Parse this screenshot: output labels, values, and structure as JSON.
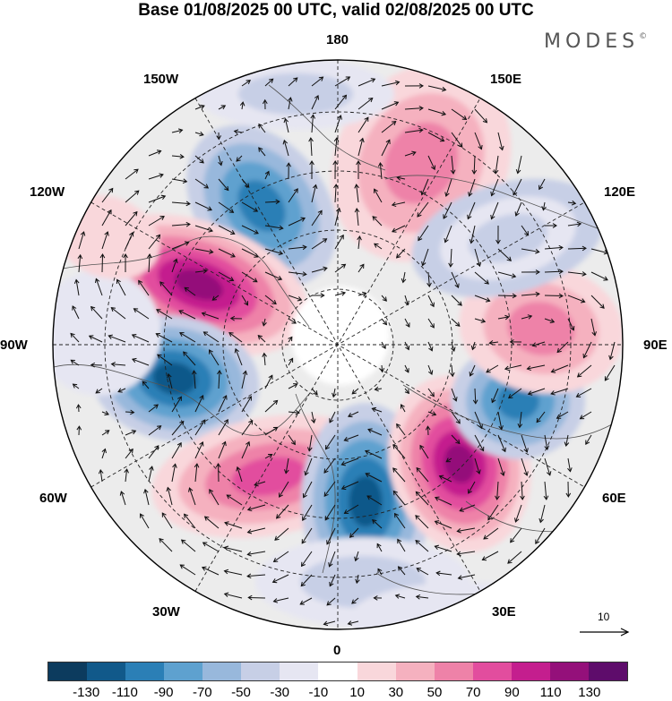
{
  "title": "Base 01/08/2025 00 UTC, valid 02/08/2025 00 UTC",
  "brand": "MODES",
  "brand_mark": "©",
  "longitude_labels": {
    "l180": "180",
    "l150w": "150W",
    "l150e": "150E",
    "l120w": "120W",
    "l120e": "120E",
    "l90w": "90W",
    "l90e": "90E",
    "l60w": "60W",
    "l60e": "60E",
    "l30w": "30W",
    "l30e": "30E",
    "l0": "0"
  },
  "reference_vector": "10",
  "colorbar": {
    "colors": [
      "#0c3b5e",
      "#11598a",
      "#2b7fb6",
      "#5ea1cf",
      "#98b8dc",
      "#c7cfe6",
      "#e6e6f2",
      "#ffffff",
      "#f9d7db",
      "#f5b1bf",
      "#ee82a8",
      "#e24d9e",
      "#c41e8e",
      "#94107a",
      "#5e0c6b"
    ],
    "tick_labels": [
      "-130",
      "-110",
      "-90",
      "-70",
      "-50",
      "-30",
      "-10",
      "10",
      "30",
      "50",
      "70",
      "90",
      "110",
      "130"
    ]
  },
  "colors": {
    "land_outline": "#555555",
    "grid": "#222222",
    "vector": "#111111"
  }
}
